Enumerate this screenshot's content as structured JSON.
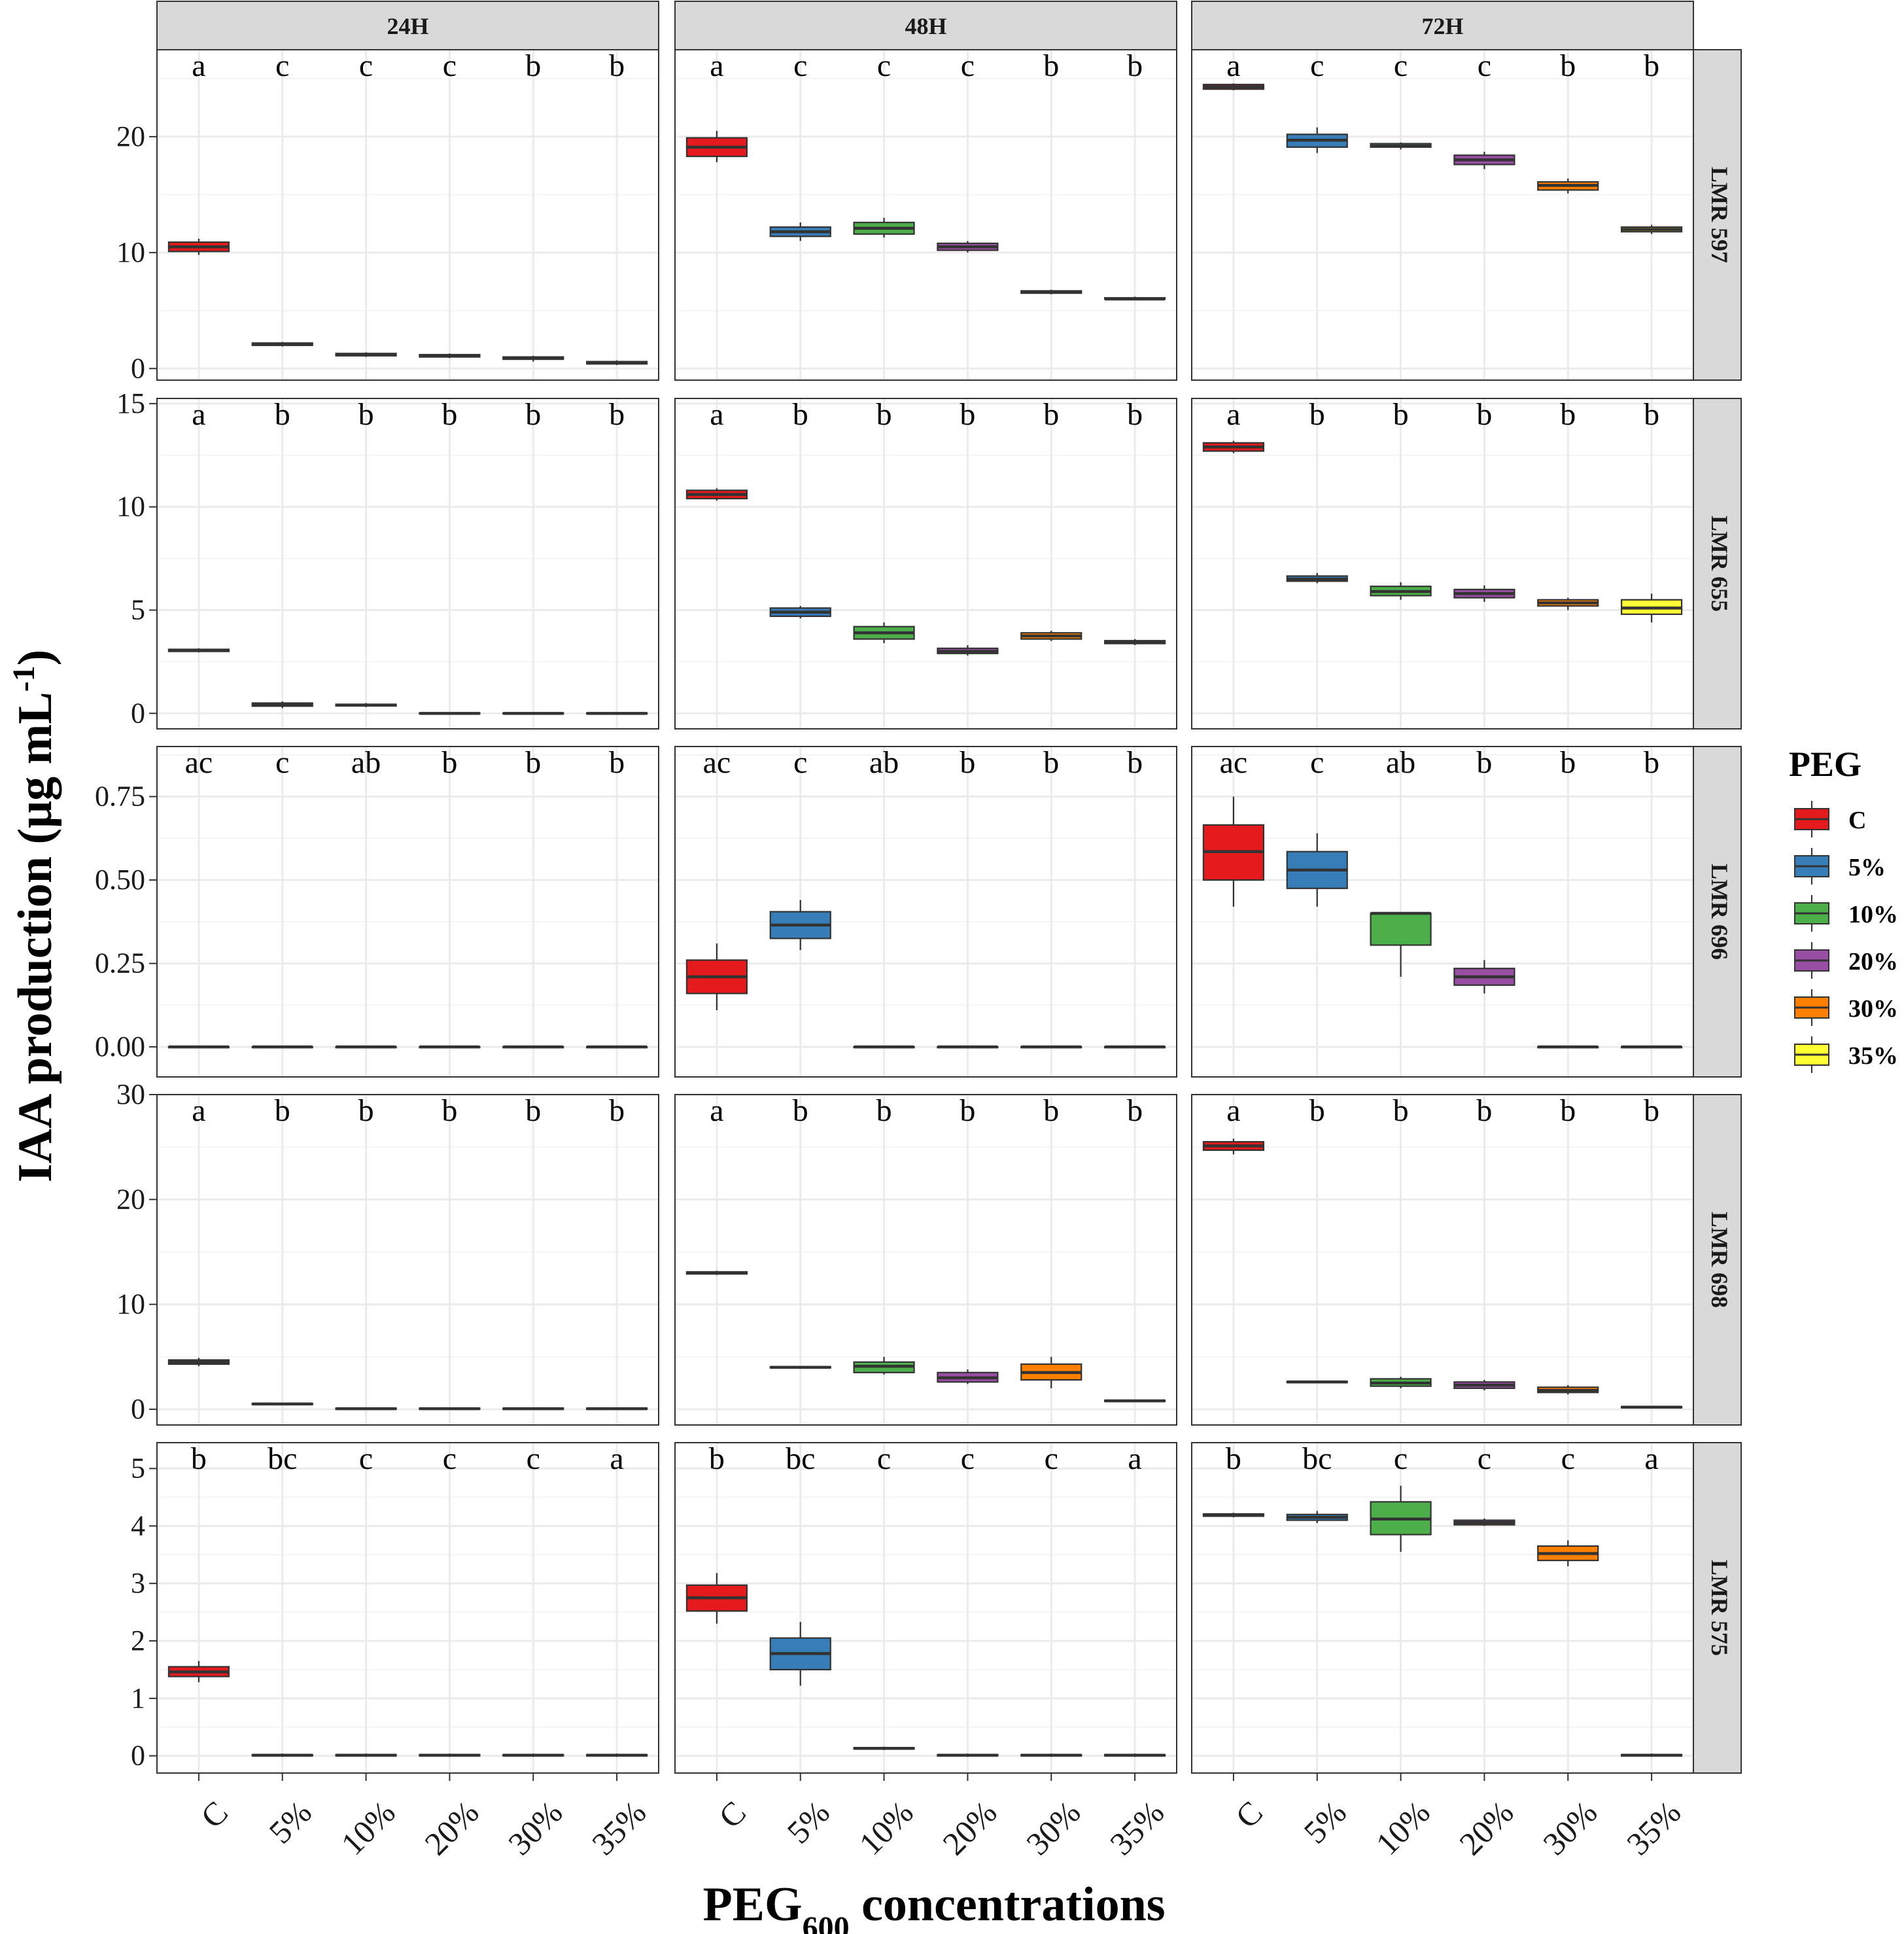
{
  "chart_data": {
    "type": "box",
    "x_title_main": "PEG",
    "x_title_sub": "600",
    "x_title_rest": " concentrations",
    "y_title_main": "IAA production (μg mL",
    "y_title_sup": "-1",
    "y_title_end": ")",
    "categories": [
      "C",
      "5%",
      "10%",
      "20%",
      "30%",
      "35%"
    ],
    "columns": [
      "24H",
      "48H",
      "72H"
    ],
    "legend": {
      "title": "PEG",
      "items": [
        {
          "label": "C",
          "color": "#E41A1C"
        },
        {
          "label": "5%",
          "color": "#377EB8"
        },
        {
          "label": "10%",
          "color": "#4DAF4A"
        },
        {
          "label": "20%",
          "color": "#984EA3"
        },
        {
          "label": "30%",
          "color": "#FF7F00"
        },
        {
          "label": "35%",
          "color": "#FFFF33"
        }
      ]
    },
    "rows": [
      {
        "strain": "LMR 597",
        "ylim": [
          -1,
          27.5
        ],
        "yticks": [
          0,
          10,
          20
        ],
        "ytick_labels": [
          "0",
          "10",
          "20"
        ],
        "letters": [
          "a",
          "c",
          "c",
          "c",
          "b",
          "b"
        ],
        "panels": [
          [
            [
              9.8,
              10.1,
              10.5,
              10.9,
              11.2
            ],
            [
              1.9,
              2.0,
              2.1,
              2.2,
              2.3
            ],
            [
              1.0,
              1.1,
              1.2,
              1.3,
              1.4
            ],
            [
              0.9,
              1.0,
              1.1,
              1.2,
              1.3
            ],
            [
              0.6,
              0.8,
              0.9,
              1.0,
              1.1
            ],
            [
              0.3,
              0.4,
              0.5,
              0.6,
              0.7
            ]
          ],
          [
            [
              17.8,
              18.3,
              19.1,
              19.9,
              20.5
            ],
            [
              11.0,
              11.4,
              11.8,
              12.2,
              12.6
            ],
            [
              11.3,
              11.6,
              12.1,
              12.6,
              13.0
            ],
            [
              10.0,
              10.2,
              10.5,
              10.8,
              11.0
            ],
            [
              6.4,
              6.5,
              6.6,
              6.7,
              6.8
            ],
            [
              5.9,
              6.0,
              6.0,
              6.1,
              6.2
            ]
          ],
          [
            [
              24.0,
              24.1,
              24.3,
              24.5,
              24.6
            ],
            [
              18.6,
              19.1,
              19.7,
              20.2,
              20.8
            ],
            [
              18.9,
              19.1,
              19.2,
              19.4,
              19.5
            ],
            [
              17.2,
              17.6,
              18.0,
              18.4,
              18.7
            ],
            [
              15.1,
              15.4,
              15.8,
              16.1,
              16.4
            ],
            [
              11.6,
              11.8,
              12.0,
              12.2,
              12.4
            ]
          ]
        ]
      },
      {
        "strain": "LMR 655",
        "ylim": [
          -0.75,
          15.25
        ],
        "yticks": [
          0,
          5,
          10,
          15
        ],
        "ytick_labels": [
          "0",
          "5",
          "10",
          "15"
        ],
        "letters": [
          "a",
          "b",
          "b",
          "b",
          "b",
          "b"
        ],
        "panels": [
          [
            [
              2.95,
              3.0,
              3.05,
              3.1,
              3.15
            ],
            [
              0.25,
              0.35,
              0.42,
              0.5,
              0.58
            ],
            [
              0.3,
              0.36,
              0.4,
              0.44,
              0.5
            ],
            [
              -0.05,
              -0.02,
              0.0,
              0.02,
              0.05
            ],
            [
              -0.05,
              -0.02,
              0.0,
              0.02,
              0.05
            ],
            [
              -0.05,
              -0.02,
              0.0,
              0.02,
              0.05
            ]
          ],
          [
            [
              10.3,
              10.4,
              10.6,
              10.8,
              10.9
            ],
            [
              4.6,
              4.7,
              4.9,
              5.1,
              5.2
            ],
            [
              3.4,
              3.6,
              3.9,
              4.2,
              4.4
            ],
            [
              2.8,
              2.9,
              3.0,
              3.15,
              3.3
            ],
            [
              3.5,
              3.6,
              3.75,
              3.9,
              4.0
            ],
            [
              3.3,
              3.38,
              3.45,
              3.52,
              3.6
            ]
          ],
          [
            [
              12.6,
              12.7,
              12.9,
              13.1,
              13.2
            ],
            [
              6.3,
              6.4,
              6.5,
              6.65,
              6.8
            ],
            [
              5.5,
              5.7,
              5.9,
              6.15,
              6.35
            ],
            [
              5.4,
              5.6,
              5.8,
              6.0,
              6.2
            ],
            [
              5.0,
              5.2,
              5.35,
              5.5,
              5.6
            ],
            [
              4.4,
              4.8,
              5.1,
              5.5,
              5.8
            ]
          ]
        ]
      },
      {
        "strain": "LMR 696",
        "ylim": [
          -0.09,
          0.9
        ],
        "yticks": [
          0,
          0.25,
          0.5,
          0.75
        ],
        "ytick_labels": [
          "0.00",
          "0.25",
          "0.50",
          "0.75"
        ],
        "letters": [
          "ac",
          "c",
          "ab",
          "b",
          "b",
          "b"
        ],
        "panels": [
          [
            [
              0,
              0,
              0,
              0,
              0
            ],
            [
              0,
              0,
              0,
              0,
              0
            ],
            [
              0,
              0,
              0,
              0,
              0
            ],
            [
              0,
              0,
              0,
              0,
              0
            ],
            [
              0,
              0,
              0,
              0,
              0
            ],
            [
              0,
              0,
              0,
              0,
              0
            ]
          ],
          [
            [
              0.11,
              0.16,
              0.21,
              0.26,
              0.31
            ],
            [
              0.29,
              0.325,
              0.365,
              0.405,
              0.44
            ],
            [
              0,
              0,
              0,
              0,
              0
            ],
            [
              0,
              0,
              0,
              0,
              0
            ],
            [
              0,
              0,
              0,
              0,
              0
            ],
            [
              0,
              0,
              0,
              0,
              0
            ]
          ],
          [
            [
              0.42,
              0.5,
              0.585,
              0.665,
              0.75
            ],
            [
              0.42,
              0.475,
              0.53,
              0.585,
              0.64
            ],
            [
              0.21,
              0.305,
              0.4,
              0.4,
              0.4
            ],
            [
              0.16,
              0.185,
              0.21,
              0.235,
              0.26
            ],
            [
              0,
              0,
              0,
              0,
              0
            ],
            [
              0,
              0,
              0,
              0,
              0
            ]
          ]
        ]
      },
      {
        "strain": "LMR 698",
        "ylim": [
          -1.5,
          30.0
        ],
        "yticks": [
          0,
          10,
          20,
          30
        ],
        "ytick_labels": [
          "0",
          "10",
          "20",
          "30"
        ],
        "letters": [
          "a",
          "b",
          "b",
          "b",
          "b",
          "b"
        ],
        "panels": [
          [
            [
              4.1,
              4.3,
              4.5,
              4.7,
              4.9
            ],
            [
              0.4,
              0.45,
              0.5,
              0.55,
              0.6
            ],
            [
              -0.05,
              0.0,
              0.05,
              0.1,
              0.15
            ],
            [
              -0.05,
              0.0,
              0.05,
              0.1,
              0.15
            ],
            [
              -0.05,
              0.0,
              0.05,
              0.1,
              0.15
            ],
            [
              -0.05,
              0.0,
              0.05,
              0.1,
              0.15
            ]
          ],
          [
            [
              12.8,
              12.9,
              13.0,
              13.1,
              13.2
            ],
            [
              3.9,
              3.95,
              4.0,
              4.05,
              4.1
            ],
            [
              3.3,
              3.5,
              4.1,
              4.5,
              5.0
            ],
            [
              2.4,
              2.6,
              3.0,
              3.5,
              3.8
            ],
            [
              2.0,
              2.8,
              3.5,
              4.3,
              5.0
            ],
            [
              0.7,
              0.75,
              0.8,
              0.85,
              0.9
            ]
          ],
          [
            [
              24.3,
              24.7,
              25.1,
              25.5,
              25.8
            ],
            [
              2.5,
              2.55,
              2.6,
              2.65,
              2.7
            ],
            [
              2.0,
              2.2,
              2.5,
              2.9,
              3.1
            ],
            [
              1.8,
              2.0,
              2.3,
              2.6,
              2.8
            ],
            [
              1.4,
              1.6,
              1.8,
              2.1,
              2.3
            ],
            [
              0.1,
              0.15,
              0.2,
              0.25,
              0.3
            ]
          ]
        ]
      },
      {
        "strain": "LMR 575",
        "ylim": [
          -0.3,
          5.45
        ],
        "yticks": [
          0,
          1,
          2,
          3,
          4,
          5
        ],
        "ytick_labels": [
          "0",
          "1",
          "2",
          "3",
          "4",
          "5"
        ],
        "letters": [
          "b",
          "bc",
          "c",
          "c",
          "c",
          "a"
        ],
        "panels": [
          [
            [
              1.28,
              1.38,
              1.46,
              1.55,
              1.65
            ],
            [
              -0.02,
              0.0,
              0.01,
              0.02,
              0.04
            ],
            [
              -0.02,
              0.0,
              0.01,
              0.02,
              0.04
            ],
            [
              -0.02,
              0.0,
              0.01,
              0.02,
              0.04
            ],
            [
              -0.02,
              0.0,
              0.01,
              0.02,
              0.04
            ],
            [
              -0.02,
              0.0,
              0.01,
              0.02,
              0.04
            ]
          ],
          [
            [
              2.3,
              2.52,
              2.75,
              2.97,
              3.18
            ],
            [
              1.22,
              1.5,
              1.78,
              2.05,
              2.33
            ],
            [
              0.1,
              0.12,
              0.13,
              0.14,
              0.16
            ],
            [
              -0.02,
              0.0,
              0.01,
              0.02,
              0.04
            ],
            [
              -0.02,
              0.0,
              0.01,
              0.02,
              0.04
            ],
            [
              -0.02,
              0.0,
              0.01,
              0.02,
              0.04
            ]
          ],
          [
            [
              4.15,
              4.17,
              4.19,
              4.21,
              4.23
            ],
            [
              4.05,
              4.1,
              4.15,
              4.2,
              4.26
            ],
            [
              3.55,
              3.85,
              4.12,
              4.42,
              4.7
            ],
            [
              4.0,
              4.02,
              4.06,
              4.1,
              4.13
            ],
            [
              3.3,
              3.4,
              3.52,
              3.65,
              3.75
            ],
            [
              -0.02,
              0.0,
              0.01,
              0.02,
              0.04
            ]
          ]
        ]
      }
    ]
  }
}
